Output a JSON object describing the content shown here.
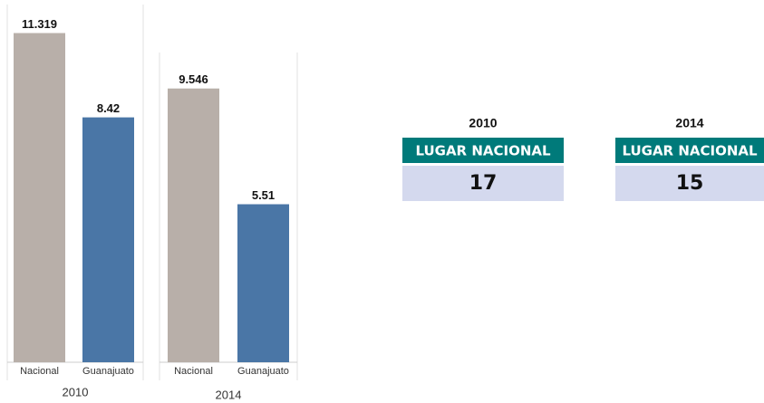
{
  "chart_data": [
    {
      "type": "bar",
      "title": "2010",
      "categories": [
        "Nacional",
        "Guanajuato"
      ],
      "values": [
        11.319,
        8.42
      ],
      "colors": [
        "#b8afa9",
        "#4a76a6"
      ],
      "ylim": [
        0,
        12.3
      ]
    },
    {
      "type": "bar",
      "title": "2014",
      "categories": [
        "Nacional",
        "Guanajuato"
      ],
      "values": [
        9.546,
        5.51
      ],
      "colors": [
        "#b8afa9",
        "#4a76a6"
      ],
      "ylim": [
        0,
        10.8
      ]
    }
  ],
  "panels": [
    {
      "year": "2010",
      "header": "LUGAR NACIONAL",
      "value": "17"
    },
    {
      "year": "2014",
      "header": "LUGAR NACIONAL",
      "value": "15"
    }
  ]
}
